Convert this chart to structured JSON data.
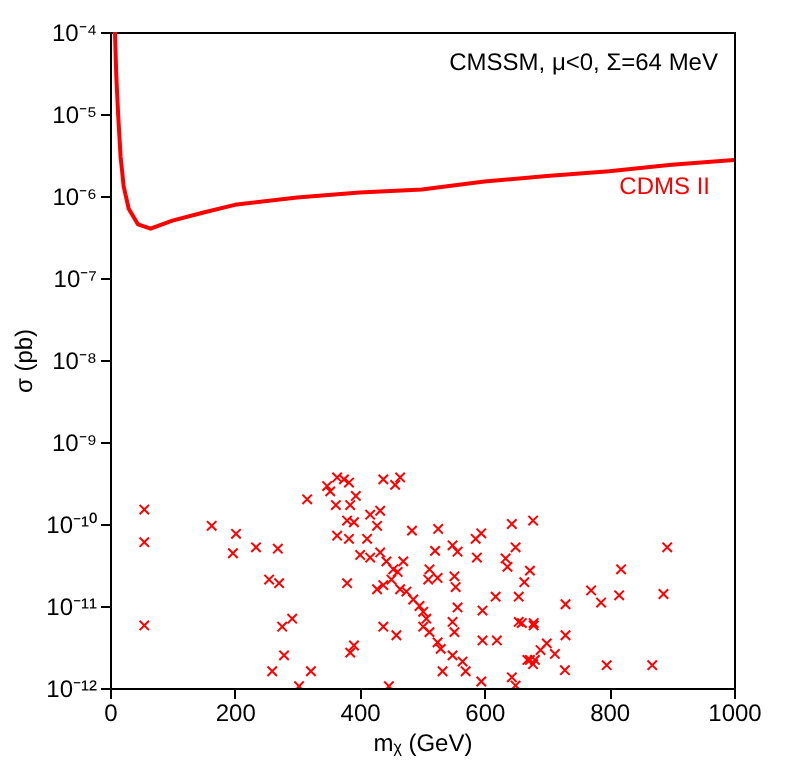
{
  "chart_data": {
    "type": "scatter",
    "xlabel": "mᵪ (GeV)",
    "ylabel": "σ (pb)",
    "annotations": [
      "CMSSM, μ<0, Σ=64 MeV"
    ],
    "log": "y",
    "grid": false,
    "xlim": [
      0,
      1000
    ],
    "xticks": [
      0,
      200,
      400,
      600,
      800,
      1000
    ],
    "ylim": [
      1e-12,
      0.0001
    ],
    "yticks": [
      {
        "value": 1e-12,
        "label": "10⁻¹²"
      },
      {
        "value": 1e-11,
        "label": "10⁻¹¹"
      },
      {
        "value": 1e-10,
        "label": "10⁻¹⁰"
      },
      {
        "value": 1e-09,
        "label": "10⁻⁹"
      },
      {
        "value": 1e-08,
        "label": "10⁻⁸"
      },
      {
        "value": 1e-07,
        "label": "10⁻⁷"
      },
      {
        "value": 1e-06,
        "label": "10⁻⁶"
      },
      {
        "value": 1e-05,
        "label": "10⁻⁵"
      },
      {
        "value": 0.0001,
        "label": "10⁻⁴"
      }
    ],
    "series": [
      {
        "name": "CDMS II",
        "type": "line",
        "color": "#ff0000",
        "line_style": "solid",
        "marker": "none",
        "x": [
          8,
          10,
          13,
          17,
          22,
          30,
          45,
          65,
          100,
          150,
          200,
          300,
          400,
          500,
          600,
          700,
          800,
          900,
          1000
        ],
        "values": [
          0.0001,
          3e-05,
          1e-05,
          3e-06,
          1.3e-06,
          7e-07,
          4.5e-07,
          4e-07,
          5e-07,
          6.3e-07,
          7.8e-07,
          9.6e-07,
          1.1e-06,
          1.2e-06,
          1.5e-06,
          1.75e-06,
          2e-06,
          2.4e-06,
          2.75e-06
        ]
      },
      {
        "color": "#ff0000",
        "marker": "cross",
        "x": [
          55,
          55,
          55,
          163,
          202,
          197,
          234,
          269,
          255,
          271,
          316,
          348,
          364,
          375,
          383,
          353,
          362,
          385,
          394,
          380,
          391,
          364,
          383,
          417,
          433,
          438,
          465,
          457,
          412,
          428,
          401,
          417,
          433,
          443,
          454,
          461,
          451,
          470,
          438,
          465,
          475,
          486,
          496,
          502,
          507,
          502,
          512,
          525,
          530,
          549,
          552,
          549,
          565,
          570,
          595,
          533,
          438,
          459,
          385,
          391,
          279,
          276,
          292,
          260,
          322,
          447,
          303,
          380,
          428,
          510,
          525,
          512,
          552,
          554,
          557,
          521,
          549,
          557,
          484,
          526,
          586,
          595,
          588,
          597,
          597,
          618,
          620,
          634,
          637,
          644,
          678,
          673,
          655,
          655,
          679,
          644,
          650,
          673,
          681,
          893,
          819,
          771,
          787,
          816,
          887,
          730,
          730,
          729,
          796,
          869,
          713,
          700,
          690,
          679,
          660,
          664,
          650,
          669,
          678
        ],
        "values": [
          1.5e-10,
          6e-11,
          5.8e-12,
          9.5e-11,
          7.6e-11,
          4.4e-11,
          5.2e-11,
          5e-11,
          2.1e-11,
          1.9e-11,
          2e-10,
          2.9e-10,
          3.7e-10,
          3.5e-10,
          3.2e-10,
          2.5e-10,
          1.7e-10,
          1.7e-10,
          2.2e-10,
          1.1e-10,
          1.05e-10,
          7.2e-11,
          6.6e-11,
          1.3e-10,
          1.45e-10,
          3.5e-10,
          3.7e-10,
          3e-10,
          6.6e-11,
          9.5e-11,
          4.2e-11,
          3.9e-11,
          4.5e-11,
          3.5e-11,
          2.8e-11,
          2.6e-11,
          2.1e-11,
          3.5e-11,
          1.8e-11,
          1.6e-11,
          1.5e-11,
          1.2e-11,
          1e-11,
          8.5e-12,
          7e-12,
          5.6e-12,
          4.8e-12,
          3.6e-12,
          3e-12,
          6.4e-12,
          4.8e-12,
          2.5e-12,
          2.1e-12,
          1.6e-12,
          1.2e-12,
          1.6e-12,
          5.6e-12,
          4.4e-12,
          2.7e-12,
          3.3e-12,
          2.5e-12,
          5.6e-12,
          7e-12,
          1.6e-12,
          1.6e-12,
          1.05e-12,
          1.05e-12,
          1.9e-11,
          1.6e-11,
          2.1e-11,
          2.2e-11,
          2.8e-11,
          2.3e-11,
          1.7e-11,
          9.6e-12,
          4.7e-11,
          5.5e-11,
          4.6e-11,
          8.3e-11,
          8.7e-11,
          6.6e-11,
          7.7e-11,
          3.9e-11,
          8.8e-12,
          3.8e-12,
          1.3e-11,
          3.8e-12,
          3.8e-11,
          3e-11,
          1e-10,
          1.1e-10,
          2.7e-11,
          1.3e-11,
          6.4e-12,
          5.8e-12,
          1.35e-12,
          1.07e-12,
          2.2e-12,
          2.2e-12,
          5.2e-11,
          2.8e-11,
          1.55e-11,
          1.1e-11,
          1.35e-11,
          1.4e-11,
          1.05e-11,
          4.4e-12,
          1.65e-12,
          1.9e-12,
          1.9e-12,
          2.6e-12,
          3.5e-12,
          2.9e-12,
          6.2e-12,
          6.2e-12,
          1.95e-11,
          5.2e-11,
          2.2e-12,
          1.95e-12
        ]
      }
    ]
  }
}
